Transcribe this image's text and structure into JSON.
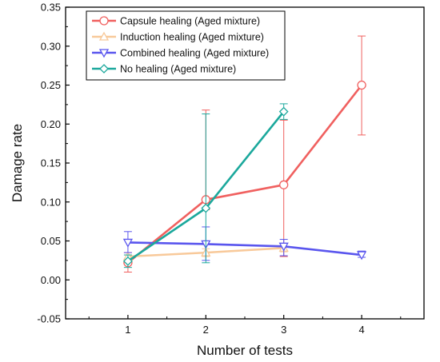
{
  "chart_data": {
    "type": "line",
    "xlabel": "Number of tests",
    "ylabel": "Damage rate",
    "xlim": [
      0.2,
      4.8
    ],
    "ylim": [
      -0.05,
      0.35
    ],
    "x_ticks": [
      1,
      2,
      3,
      4
    ],
    "y_ticks": [
      -0.05,
      0.0,
      0.05,
      0.1,
      0.15,
      0.2,
      0.25,
      0.3,
      0.35
    ],
    "y_tick_labels": [
      "-0.05",
      "0.00",
      "0.05",
      "0.10",
      "0.15",
      "0.20",
      "0.25",
      "0.30",
      "0.35"
    ],
    "grid": false,
    "legend_position": "top-left",
    "series": [
      {
        "name": "Capsule healing (Aged mixture)",
        "color": "#f0605f",
        "marker": "circle",
        "x": [
          1,
          2,
          3,
          4
        ],
        "y": [
          0.022,
          0.103,
          0.122,
          0.25
        ],
        "err_low": [
          0.01,
          0.09,
          0.03,
          0.186
        ],
        "err_high": [
          0.035,
          0.218,
          0.205,
          0.313
        ]
      },
      {
        "name": "Induction healing (Aged mixture)",
        "color": "#f8c99a",
        "marker": "triangle-up",
        "x": [
          1,
          2,
          3
        ],
        "y": [
          0.03,
          0.035,
          0.041
        ],
        "err_low": [
          0.025,
          0.03,
          0.036
        ],
        "err_high": [
          0.035,
          0.04,
          0.046
        ]
      },
      {
        "name": "Combined healing (Aged mixture)",
        "color": "#5a56ee",
        "marker": "triangle-down",
        "x": [
          1,
          2,
          3,
          4
        ],
        "y": [
          0.048,
          0.046,
          0.043,
          0.032
        ],
        "err_low": [
          0.035,
          0.025,
          0.031,
          0.029
        ],
        "err_high": [
          0.062,
          0.068,
          0.052,
          0.037
        ]
      },
      {
        "name": "No healing (Aged mixture)",
        "color": "#1ba89c",
        "marker": "diamond",
        "x": [
          1,
          2,
          3
        ],
        "y": [
          0.024,
          0.092,
          0.216
        ],
        "err_low": [
          0.016,
          0.022,
          0.206
        ],
        "err_high": [
          0.032,
          0.213,
          0.226
        ]
      }
    ]
  }
}
